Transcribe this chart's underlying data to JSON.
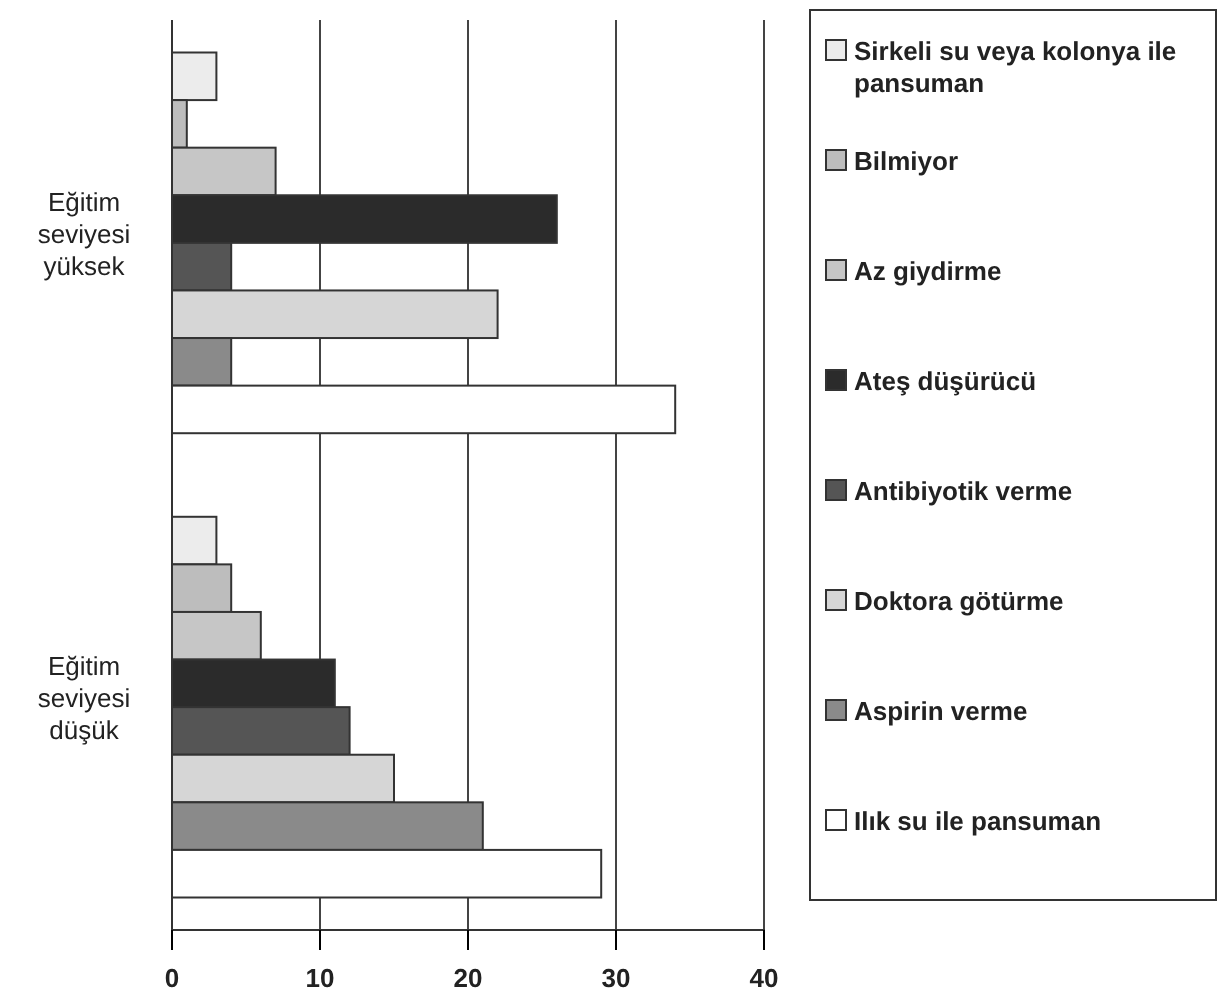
{
  "chart_data": {
    "type": "bar",
    "orientation": "horizontal",
    "categories": [
      "Eğitim seviyesi yüksek",
      "Eğitim seviyesi düşük"
    ],
    "series": [
      {
        "name": "Sirkeli su veya kolonya ile pansuman",
        "color": "#ececec",
        "values": [
          3,
          3
        ]
      },
      {
        "name": "Bilmiyor",
        "color": "#bdbdbd",
        "values": [
          1,
          4
        ]
      },
      {
        "name": "Az giydirme",
        "color": "#c6c6c6",
        "values": [
          7,
          6
        ]
      },
      {
        "name": "Ateş düşürücü",
        "color": "#2b2b2b",
        "values": [
          26,
          11
        ]
      },
      {
        "name": "Antibiyotik verme",
        "color": "#555555",
        "values": [
          4,
          12
        ]
      },
      {
        "name": "Doktora götürme",
        "color": "#d6d6d6",
        "values": [
          22,
          15
        ]
      },
      {
        "name": "Aspirin verme",
        "color": "#8a8a8a",
        "values": [
          4,
          21
        ]
      },
      {
        "name": "Ilık su ile pansuman",
        "color": "#ffffff",
        "values": [
          34,
          29
        ]
      }
    ],
    "xlim": [
      0,
      40
    ],
    "xticks": [
      0,
      10,
      20,
      30,
      40
    ],
    "grid": "x",
    "legend": "right"
  }
}
